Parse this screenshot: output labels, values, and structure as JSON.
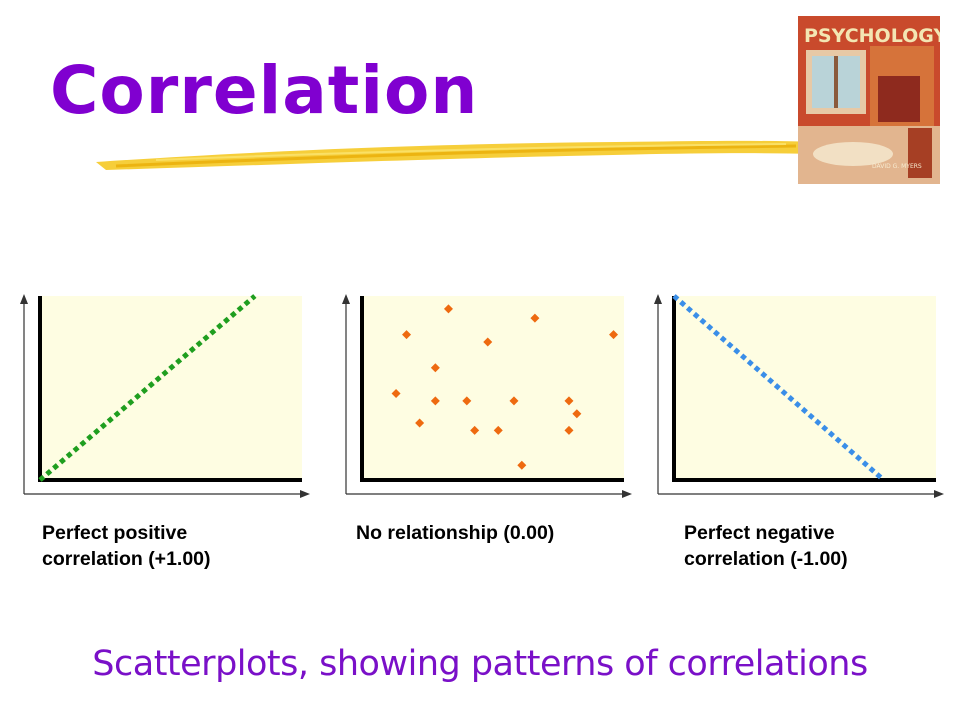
{
  "slide": {
    "title": "Correlation",
    "subtitle": "Scatterplots, showing patterns of correlations",
    "title_color": "#8000d0",
    "accent_brush_color": "#f5c518",
    "plot_fill": "#fefde2"
  },
  "book_cover": {
    "title": "PSYCHOLOGY",
    "author": "DAVID G. MYERS"
  },
  "chart_data": [
    {
      "type": "scatter",
      "title": "",
      "caption_lines": [
        "Perfect positive",
        "correlation (+1.00)"
      ],
      "mark": "dotted-line",
      "line_color": "#1f9e1f",
      "xlim": [
        0,
        1
      ],
      "ylim": [
        0,
        1
      ],
      "points": [
        [
          0.0,
          0.0
        ],
        [
          0.82,
          1.0
        ]
      ],
      "grid": false,
      "legend": "none"
    },
    {
      "type": "scatter",
      "title": "",
      "caption_lines": [
        "No relationship (0.00)"
      ],
      "mark": "diamond",
      "point_color": "#ee6a10",
      "xlim": [
        0,
        1
      ],
      "ylim": [
        0,
        1
      ],
      "points": [
        [
          0.33,
          0.93
        ],
        [
          0.66,
          0.88
        ],
        [
          0.17,
          0.79
        ],
        [
          0.96,
          0.79
        ],
        [
          0.48,
          0.75
        ],
        [
          0.28,
          0.61
        ],
        [
          0.13,
          0.47
        ],
        [
          0.28,
          0.43
        ],
        [
          0.4,
          0.43
        ],
        [
          0.58,
          0.43
        ],
        [
          0.79,
          0.43
        ],
        [
          0.82,
          0.36
        ],
        [
          0.22,
          0.31
        ],
        [
          0.43,
          0.27
        ],
        [
          0.52,
          0.27
        ],
        [
          0.79,
          0.27
        ],
        [
          0.61,
          0.08
        ]
      ],
      "grid": false,
      "legend": "none"
    },
    {
      "type": "scatter",
      "title": "",
      "caption_lines": [
        "Perfect negative",
        "correlation (-1.00)"
      ],
      "mark": "dotted-line",
      "line_color": "#3a8ee8",
      "xlim": [
        0,
        1
      ],
      "ylim": [
        0,
        1
      ],
      "points": [
        [
          0.0,
          1.0
        ],
        [
          0.8,
          0.0
        ]
      ],
      "grid": false,
      "legend": "none"
    }
  ]
}
